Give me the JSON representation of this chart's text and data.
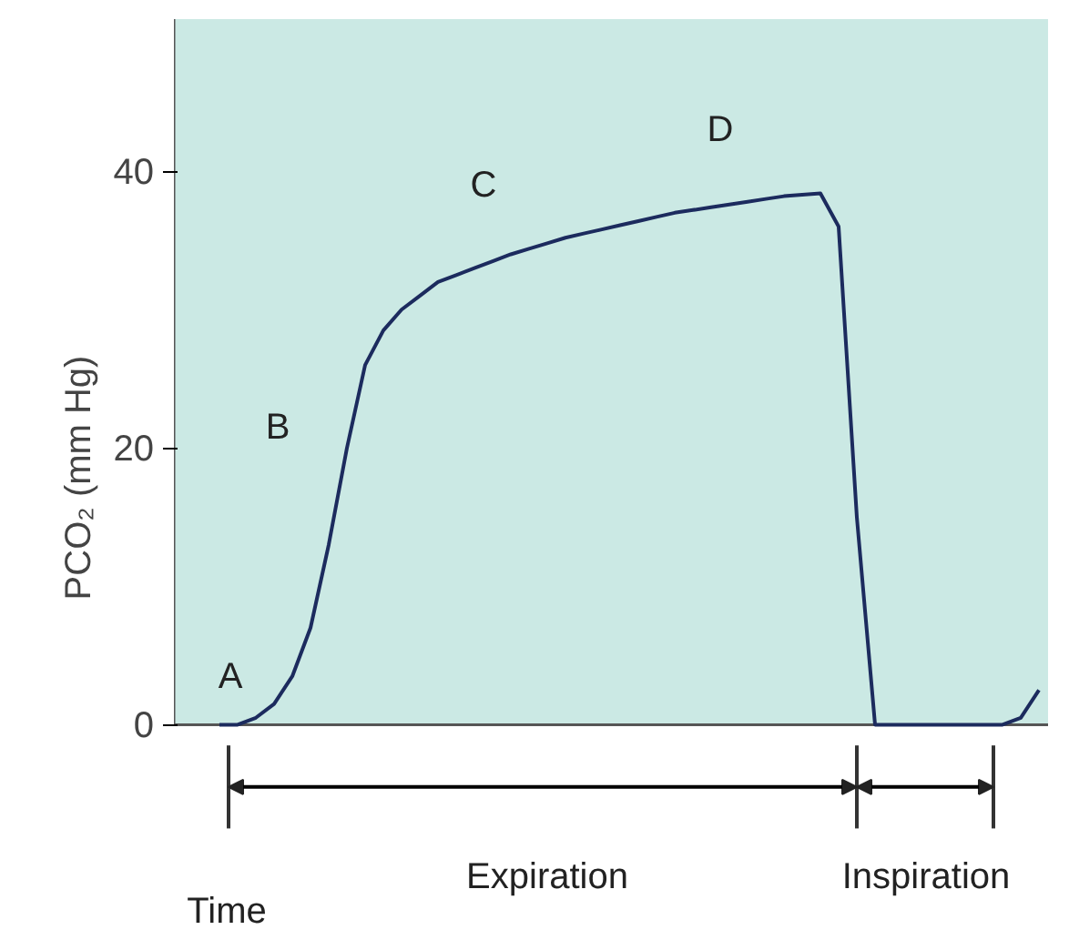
{
  "chart_data": {
    "type": "line",
    "ylabel": "PCO₂ (mm Hg)",
    "xlabel": "Time",
    "categories": [
      null,
      null,
      null,
      null,
      null,
      null,
      null,
      null,
      null,
      null,
      null,
      null,
      null,
      null,
      null,
      null,
      null,
      null,
      null,
      null,
      null,
      null,
      null,
      null,
      null,
      null,
      null,
      null,
      null,
      null,
      null,
      null,
      null,
      null,
      null,
      null,
      null,
      null,
      null,
      null,
      null,
      null,
      null,
      null,
      null,
      null,
      null,
      null
    ],
    "series": [
      {
        "color": "#1c2b5e",
        "values": [
          null,
          null,
          0,
          0,
          0.5,
          1.5,
          3.5,
          7,
          13,
          20,
          26,
          28.5,
          30,
          31,
          32,
          32.5,
          33,
          33.5,
          34,
          34.4,
          34.8,
          35.2,
          35.5,
          35.8,
          36.1,
          36.4,
          36.7,
          37,
          37.2,
          37.4,
          37.6,
          37.8,
          38,
          38.2,
          38.3,
          38.4,
          36,
          15,
          0,
          0,
          0,
          0,
          0,
          0,
          0,
          0,
          0.5,
          2.5
        ]
      }
    ],
    "ylim": [
      0,
      51
    ],
    "yticks": [
      0,
      20,
      40
    ],
    "grid": false,
    "tick_labels": "y",
    "marker": "none",
    "line_style": "solid",
    "annotations": [
      "A",
      "B",
      "C",
      "D",
      "Expiration",
      "Inspiration"
    ]
  }
}
